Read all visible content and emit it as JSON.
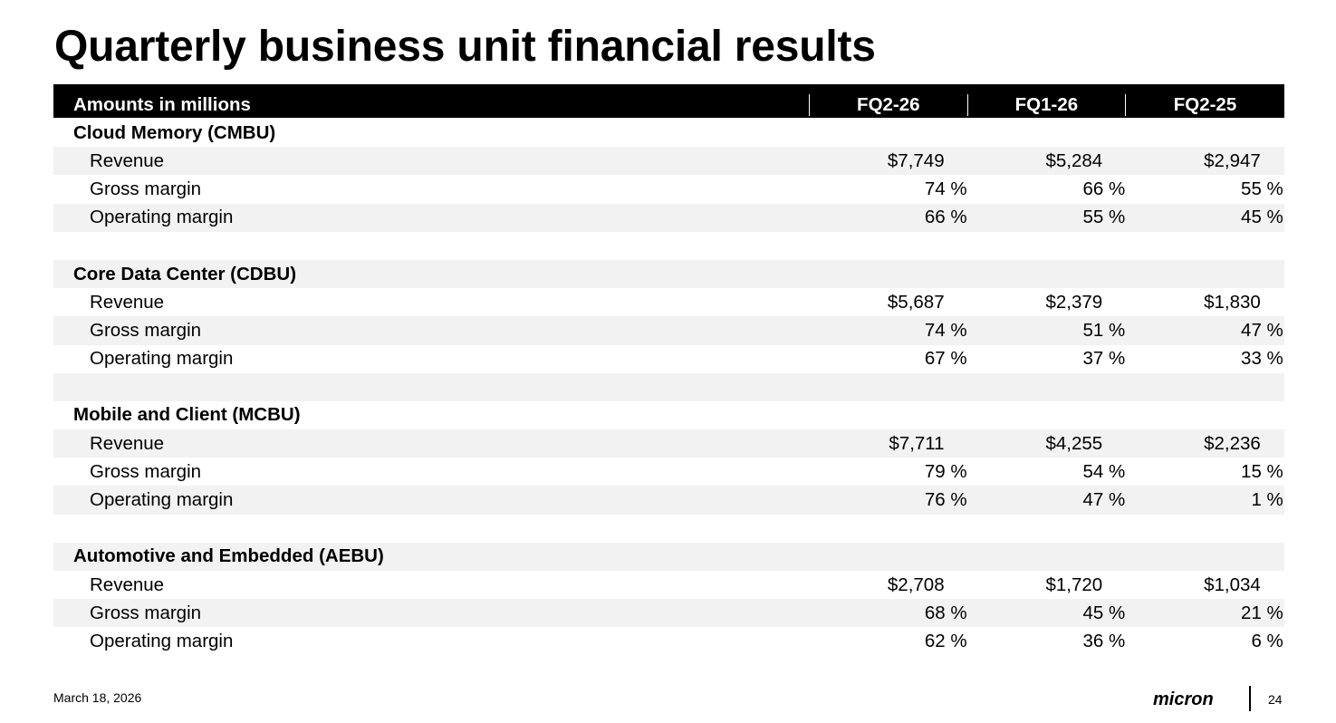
{
  "title": "Quarterly business unit financial results",
  "table": {
    "header": {
      "label": "Amounts in millions",
      "columns": [
        "FQ2-26",
        "FQ1-26",
        "FQ2-25"
      ]
    },
    "sections": [
      {
        "name": "Cloud Memory (CMBU)",
        "rows": [
          {
            "label": "Revenue",
            "values": [
              "$7,749",
              "$5,284",
              "$2,947"
            ]
          },
          {
            "label": "Gross margin",
            "values": [
              "74 %",
              "66 %",
              "55 %"
            ]
          },
          {
            "label": "Operating margin",
            "values": [
              "66 %",
              "55 %",
              "45 %"
            ]
          }
        ]
      },
      {
        "name": "Core Data Center (CDBU)",
        "rows": [
          {
            "label": "Revenue",
            "values": [
              "$5,687",
              "$2,379",
              "$1,830"
            ]
          },
          {
            "label": "Gross margin",
            "values": [
              "74 %",
              "51 %",
              "47 %"
            ]
          },
          {
            "label": "Operating margin",
            "values": [
              "67 %",
              "37 %",
              "33 %"
            ]
          }
        ]
      },
      {
        "name": "Mobile and Client (MCBU)",
        "rows": [
          {
            "label": "Revenue",
            "values": [
              "$7,711",
              "$4,255",
              "$2,236"
            ]
          },
          {
            "label": "Gross margin",
            "values": [
              "79 %",
              "54 %",
              "15 %"
            ]
          },
          {
            "label": "Operating margin",
            "values": [
              "76 %",
              "47 %",
              "1 %"
            ]
          }
        ]
      },
      {
        "name": "Automotive and Embedded (AEBU)",
        "rows": [
          {
            "label": "Revenue",
            "values": [
              "$2,708",
              "$1,720",
              "$1,034"
            ]
          },
          {
            "label": "Gross margin",
            "values": [
              "68 %",
              "45 %",
              "21 %"
            ]
          },
          {
            "label": "Operating margin",
            "values": [
              "62 %",
              "36 %",
              "6 %"
            ]
          }
        ]
      }
    ]
  },
  "footer": {
    "date": "March 18, 2026",
    "logo_text": "micron",
    "page_number": "24"
  }
}
